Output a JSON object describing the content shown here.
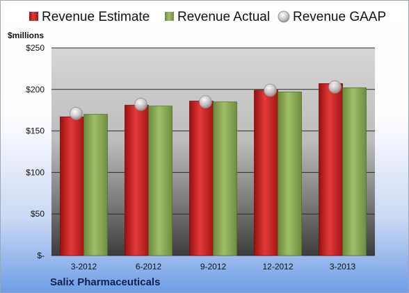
{
  "chart_data": {
    "type": "bar",
    "unit_label": "$millions",
    "footer": "Salix Pharmaceuticals",
    "categories": [
      "3-2012",
      "6-2012",
      "9-2012",
      "12-2012",
      "3-2013"
    ],
    "series": [
      {
        "name": "Revenue Estimate",
        "values": [
          167,
          181,
          186,
          199,
          207
        ],
        "color": "#d42a2a"
      },
      {
        "name": "Revenue Actual",
        "values": [
          170,
          180,
          185,
          197,
          202
        ],
        "color": "#8fb05a"
      },
      {
        "name": "Revenue GAAP",
        "values": [
          171,
          182,
          185,
          199,
          203
        ],
        "color": "#c8c8c8"
      }
    ],
    "ylim": [
      0,
      250
    ],
    "yticks": [
      0,
      50,
      100,
      150,
      200,
      250
    ],
    "ytick_labels": [
      "$-",
      "$50",
      "$100",
      "$150",
      "$200",
      "$250"
    ],
    "grid": true,
    "legend_position": "top"
  }
}
